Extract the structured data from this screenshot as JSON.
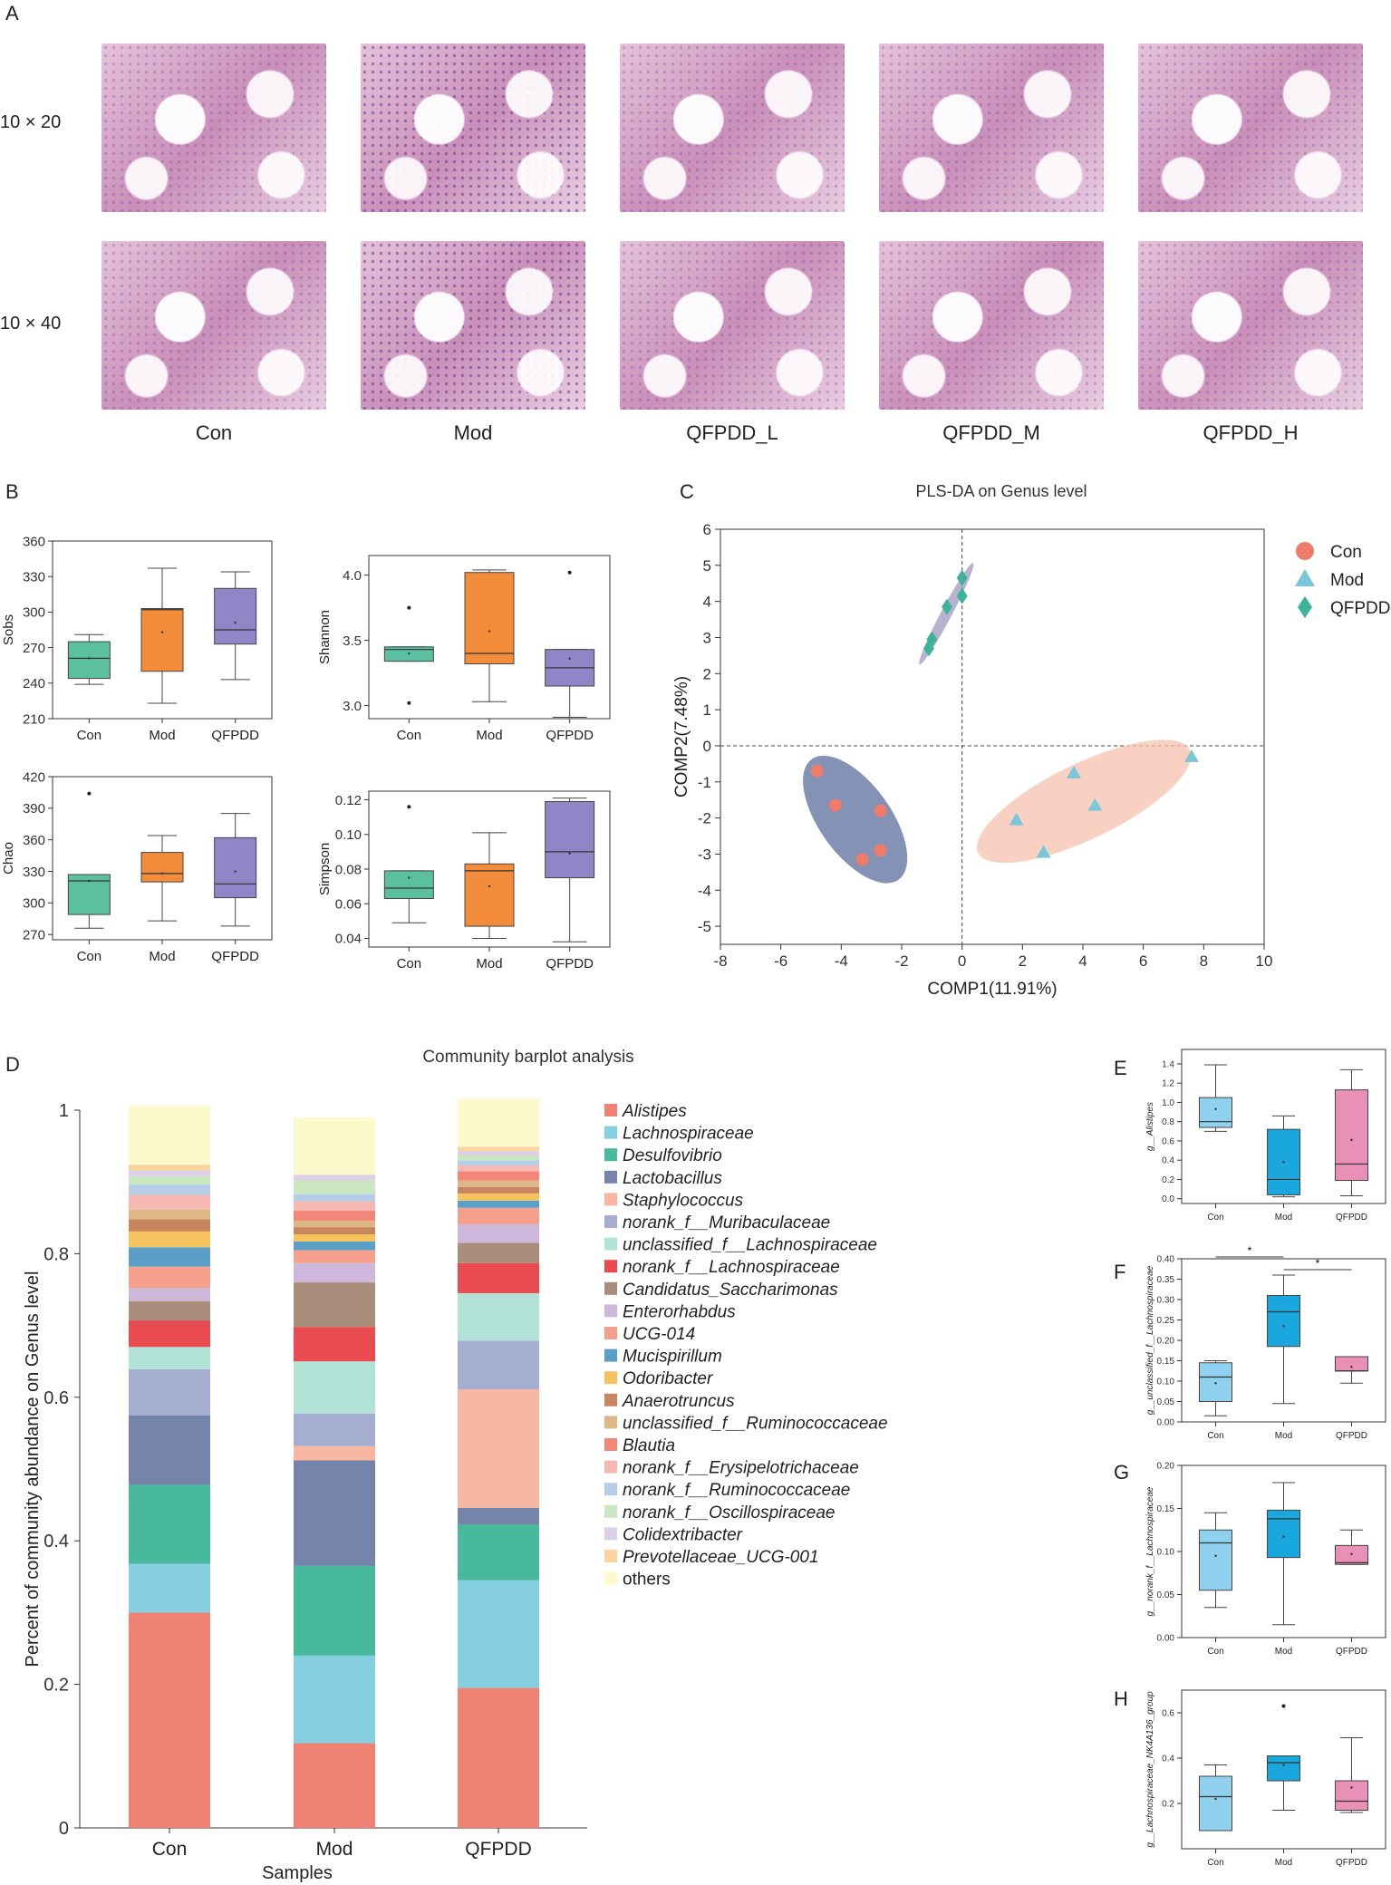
{
  "panels": {
    "A": "A",
    "B": "B",
    "C": "C",
    "D": "D",
    "E": "E",
    "F": "F",
    "G": "G",
    "H": "H"
  },
  "histology": {
    "row_labels": [
      "10 × 20",
      "10 × 40"
    ],
    "columns": [
      "Con",
      "Mod",
      "QFPDD_L",
      "QFPDD_M",
      "QFPDD_H"
    ]
  },
  "colors": {
    "Con": "#5bc0a0",
    "Mod": "#f28c3a",
    "QFPDD": "#8f86c8",
    "pls_con": "#ef7b6b",
    "pls_mod": "#79c7d9",
    "pls_qfpdd": "#3db39a",
    "box_blue": "#8fd1ee",
    "box_mod_blue": "#1aa7dd",
    "box_pink": "#e890b6"
  },
  "chart_data": [
    {
      "id": "B-sobs",
      "type": "box",
      "ylabel": "Sobs",
      "ylim": [
        210,
        360
      ],
      "yticks": [
        210,
        240,
        270,
        300,
        330,
        360
      ],
      "categories": [
        "Con",
        "Mod",
        "QFPDD"
      ],
      "boxes": [
        {
          "min": 239,
          "q1": 244,
          "median": 261,
          "q3": 275,
          "max": 281,
          "mean": 261,
          "outliers": []
        },
        {
          "min": 223,
          "q1": 250,
          "median": 302,
          "q3": 303,
          "max": 337,
          "mean": 283,
          "outliers": []
        },
        {
          "min": 243,
          "q1": 273,
          "median": 285,
          "q3": 320,
          "max": 334,
          "mean": 291,
          "outliers": []
        }
      ]
    },
    {
      "id": "B-shannon",
      "type": "box",
      "ylabel": "Shannon",
      "ylim": [
        2.9,
        4.15
      ],
      "yticks": [
        3.0,
        3.5,
        4.0
      ],
      "categories": [
        "Con",
        "Mod",
        "QFPDD"
      ],
      "boxes": [
        {
          "min": 3.34,
          "q1": 3.34,
          "median": 3.43,
          "q3": 3.45,
          "max": 3.45,
          "mean": 3.4,
          "outliers": [
            3.02,
            3.75
          ]
        },
        {
          "min": 3.03,
          "q1": 3.32,
          "median": 3.4,
          "q3": 4.02,
          "max": 4.04,
          "mean": 3.57,
          "outliers": []
        },
        {
          "min": 2.91,
          "q1": 3.15,
          "median": 3.29,
          "q3": 3.43,
          "max": 3.43,
          "mean": 3.36,
          "outliers": [
            4.02
          ]
        }
      ]
    },
    {
      "id": "B-chao",
      "type": "box",
      "ylabel": "Chao",
      "ylim": [
        265,
        420
      ],
      "yticks": [
        270,
        300,
        330,
        360,
        390,
        420
      ],
      "categories": [
        "Con",
        "Mod",
        "QFPDD"
      ],
      "boxes": [
        {
          "min": 276,
          "q1": 289,
          "median": 321,
          "q3": 327,
          "max": 327,
          "mean": 321,
          "outliers": [
            404
          ]
        },
        {
          "min": 283,
          "q1": 320,
          "median": 328,
          "q3": 348,
          "max": 364,
          "mean": 328,
          "outliers": []
        },
        {
          "min": 278,
          "q1": 305,
          "median": 318,
          "q3": 362,
          "max": 385,
          "mean": 330,
          "outliers": []
        }
      ]
    },
    {
      "id": "B-simpson",
      "type": "box",
      "ylabel": "Simpson",
      "ylim": [
        0.035,
        0.125
      ],
      "yticks": [
        0.04,
        0.06,
        0.08,
        0.1,
        0.12
      ],
      "categories": [
        "Con",
        "Mod",
        "QFPDD"
      ],
      "boxes": [
        {
          "min": 0.049,
          "q1": 0.063,
          "median": 0.069,
          "q3": 0.079,
          "max": 0.079,
          "mean": 0.075,
          "outliers": [
            0.116
          ]
        },
        {
          "min": 0.04,
          "q1": 0.047,
          "median": 0.079,
          "q3": 0.083,
          "max": 0.101,
          "mean": 0.07,
          "outliers": []
        },
        {
          "min": 0.038,
          "q1": 0.075,
          "median": 0.09,
          "q3": 0.119,
          "max": 0.121,
          "mean": 0.089,
          "outliers": []
        }
      ]
    },
    {
      "id": "C",
      "type": "scatter",
      "title": "PLS-DA on Genus level",
      "xlabel": "COMP1(11.91%)",
      "ylabel": "COMP2(7.48%)",
      "xlim": [
        -8,
        10
      ],
      "ylim": [
        -5.5,
        6
      ],
      "xticks": [
        -8,
        -6,
        -4,
        -2,
        0,
        2,
        4,
        6,
        8,
        10
      ],
      "yticks": [
        -5,
        -4,
        -3,
        -2,
        -1,
        0,
        1,
        2,
        3,
        4,
        5,
        6
      ],
      "legend": [
        "Con",
        "Mod",
        "QFPDD"
      ],
      "series": [
        {
          "name": "Con",
          "points": [
            [
              -4.8,
              -0.7
            ],
            [
              -4.2,
              -1.65
            ],
            [
              -2.7,
              -1.8
            ],
            [
              -2.7,
              -2.9
            ],
            [
              -3.3,
              -3.15
            ]
          ]
        },
        {
          "name": "Mod",
          "points": [
            [
              7.6,
              -0.3
            ],
            [
              3.7,
              -0.75
            ],
            [
              4.4,
              -1.65
            ],
            [
              1.8,
              -2.05
            ],
            [
              2.7,
              -2.95
            ]
          ]
        },
        {
          "name": "QFPDD",
          "points": [
            [
              -1.1,
              2.7
            ],
            [
              -1.0,
              2.95
            ],
            [
              -0.5,
              3.85
            ],
            [
              0.0,
              4.65
            ],
            [
              0.0,
              4.15
            ]
          ]
        }
      ]
    },
    {
      "id": "D",
      "type": "stacked-bar",
      "title": "Community barplot analysis",
      "xlabel": "Samples",
      "ylabel": "Percent of community abundance on Genus level",
      "ylim": [
        0,
        1
      ],
      "yticks": [
        0,
        0.2,
        0.4,
        0.6,
        0.8,
        1
      ],
      "categories": [
        "Con",
        "Mod",
        "QFPDD"
      ],
      "series": [
        {
          "name": "Alistipes",
          "color": "#ef8272",
          "values": [
            0.3,
            0.118,
            0.195
          ]
        },
        {
          "name": "Lachnospiraceae",
          "color": "#86cfe0",
          "values": [
            0.068,
            0.122,
            0.15
          ]
        },
        {
          "name": "Desulfovibrio",
          "color": "#49b99e",
          "values": [
            0.11,
            0.125,
            0.078
          ]
        },
        {
          "name": "Lactobacillus",
          "color": "#7584ab",
          "values": [
            0.097,
            0.147,
            0.023
          ]
        },
        {
          "name": "Staphylococcus",
          "color": "#f7b6a1",
          "values": [
            0.0,
            0.02,
            0.165
          ]
        },
        {
          "name": "norank_f__Muribaculaceae",
          "color": "#a5add0",
          "values": [
            0.064,
            0.045,
            0.068
          ]
        },
        {
          "name": "unclassified_f__Lachnospiraceae",
          "color": "#b3e2d7",
          "values": [
            0.031,
            0.073,
            0.066
          ]
        },
        {
          "name": "norank_f__Lachnospiraceae",
          "color": "#e94b51",
          "values": [
            0.037,
            0.048,
            0.042
          ]
        },
        {
          "name": "Candidatus_Saccharimonas",
          "color": "#a98f7b",
          "values": [
            0.027,
            0.062,
            0.028
          ]
        },
        {
          "name": "Enterorhabdus",
          "color": "#cdb8dc",
          "values": [
            0.018,
            0.027,
            0.026
          ]
        },
        {
          "name": "UCG-014",
          "color": "#f4a08d",
          "values": [
            0.03,
            0.018,
            0.023
          ]
        },
        {
          "name": "Mucispirillum",
          "color": "#5a9fc7",
          "values": [
            0.027,
            0.012,
            0.01
          ]
        },
        {
          "name": "Odoribacter",
          "color": "#f6c25d",
          "values": [
            0.022,
            0.01,
            0.01
          ]
        },
        {
          "name": "Anaerotruncus",
          "color": "#c9855e",
          "values": [
            0.017,
            0.01,
            0.009
          ]
        },
        {
          "name": "unclassified_f__Ruminococcaceae",
          "color": "#ddb886",
          "values": [
            0.014,
            0.009,
            0.009
          ]
        },
        {
          "name": "Blautia",
          "color": "#f28677",
          "values": [
            0.0,
            0.014,
            0.013
          ]
        },
        {
          "name": "norank_f__Erysipelotrichaceae",
          "color": "#f5b8b2",
          "values": [
            0.02,
            0.013,
            0.008
          ]
        },
        {
          "name": "norank_f__Ruminococcaceae",
          "color": "#b5cde8",
          "values": [
            0.014,
            0.01,
            0.007
          ]
        },
        {
          "name": "norank_f__Oscillospiraceae",
          "color": "#cae7c2",
          "values": [
            0.012,
            0.019,
            0.007
          ]
        },
        {
          "name": "Colidextribacter",
          "color": "#ddcfe6",
          "values": [
            0.008,
            0.008,
            0.006
          ]
        },
        {
          "name": "Prevotellaceae_UCG-001",
          "color": "#fbd39e",
          "values": [
            0.008,
            0.0,
            0.006
          ]
        },
        {
          "name": "others",
          "color": "#fcf9cc",
          "values": [
            0.082,
            0.08,
            0.067
          ]
        }
      ]
    },
    {
      "id": "E",
      "type": "box",
      "ylabel": "g__Alistipes",
      "ylim": [
        -0.05,
        1.55
      ],
      "yticks": [
        0.0,
        0.2,
        0.4,
        0.6,
        0.8,
        1.0,
        1.2,
        1.4
      ],
      "categories": [
        "Con",
        "Mod",
        "QFPDD"
      ],
      "significance": [],
      "boxes": [
        {
          "min": 0.7,
          "q1": 0.74,
          "median": 0.8,
          "q3": 1.05,
          "max": 1.39,
          "mean": 0.93,
          "outliers": []
        },
        {
          "min": 0.02,
          "q1": 0.04,
          "median": 0.2,
          "q3": 0.72,
          "max": 0.86,
          "mean": 0.38,
          "outliers": []
        },
        {
          "min": 0.03,
          "q1": 0.19,
          "median": 0.36,
          "q3": 1.13,
          "max": 1.34,
          "mean": 0.61,
          "outliers": []
        }
      ]
    },
    {
      "id": "F",
      "type": "box",
      "ylabel": "g__unclassified_f__Lachnospiraceae",
      "ylim": [
        0,
        0.4
      ],
      "yticks": [
        0.0,
        0.05,
        0.1,
        0.15,
        0.2,
        0.25,
        0.3,
        0.35,
        0.4
      ],
      "categories": [
        "Con",
        "Mod",
        "QFPDD"
      ],
      "significance": [
        "*",
        "*"
      ],
      "boxes": [
        {
          "min": 0.015,
          "q1": 0.05,
          "median": 0.11,
          "q3": 0.145,
          "max": 0.15,
          "mean": 0.095,
          "outliers": []
        },
        {
          "min": 0.045,
          "q1": 0.185,
          "median": 0.27,
          "q3": 0.31,
          "max": 0.36,
          "mean": 0.235,
          "outliers": []
        },
        {
          "min": 0.095,
          "q1": 0.125,
          "median": 0.125,
          "q3": 0.16,
          "max": 0.16,
          "mean": 0.135,
          "outliers": []
        }
      ]
    },
    {
      "id": "G",
      "type": "box",
      "ylabel": "g__norank_f__Lachnospiraceae",
      "ylim": [
        0,
        0.2
      ],
      "yticks": [
        0.0,
        0.05,
        0.1,
        0.15,
        0.2
      ],
      "categories": [
        "Con",
        "Mod",
        "QFPDD"
      ],
      "significance": [],
      "boxes": [
        {
          "min": 0.035,
          "q1": 0.055,
          "median": 0.11,
          "q3": 0.125,
          "max": 0.145,
          "mean": 0.095,
          "outliers": []
        },
        {
          "min": 0.015,
          "q1": 0.093,
          "median": 0.138,
          "q3": 0.148,
          "max": 0.18,
          "mean": 0.117,
          "outliers": []
        },
        {
          "min": 0.085,
          "q1": 0.085,
          "median": 0.087,
          "q3": 0.107,
          "max": 0.125,
          "mean": 0.097,
          "outliers": []
        }
      ]
    },
    {
      "id": "H",
      "type": "box",
      "ylabel": "g__Lachnospiraceae_NK4A136_group",
      "ylim": [
        0,
        0.7
      ],
      "yticks": [
        0.2,
        0.4,
        0.6
      ],
      "categories": [
        "Con",
        "Mod",
        "QFPDD"
      ],
      "significance": [],
      "boxes": [
        {
          "min": 0.08,
          "q1": 0.08,
          "median": 0.23,
          "q3": 0.32,
          "max": 0.37,
          "mean": 0.22,
          "outliers": []
        },
        {
          "min": 0.17,
          "q1": 0.3,
          "median": 0.38,
          "q3": 0.41,
          "max": 0.41,
          "mean": 0.37,
          "outliers": [
            0.63
          ]
        },
        {
          "min": 0.16,
          "q1": 0.17,
          "median": 0.21,
          "q3": 0.3,
          "max": 0.49,
          "mean": 0.27,
          "outliers": []
        }
      ]
    }
  ]
}
